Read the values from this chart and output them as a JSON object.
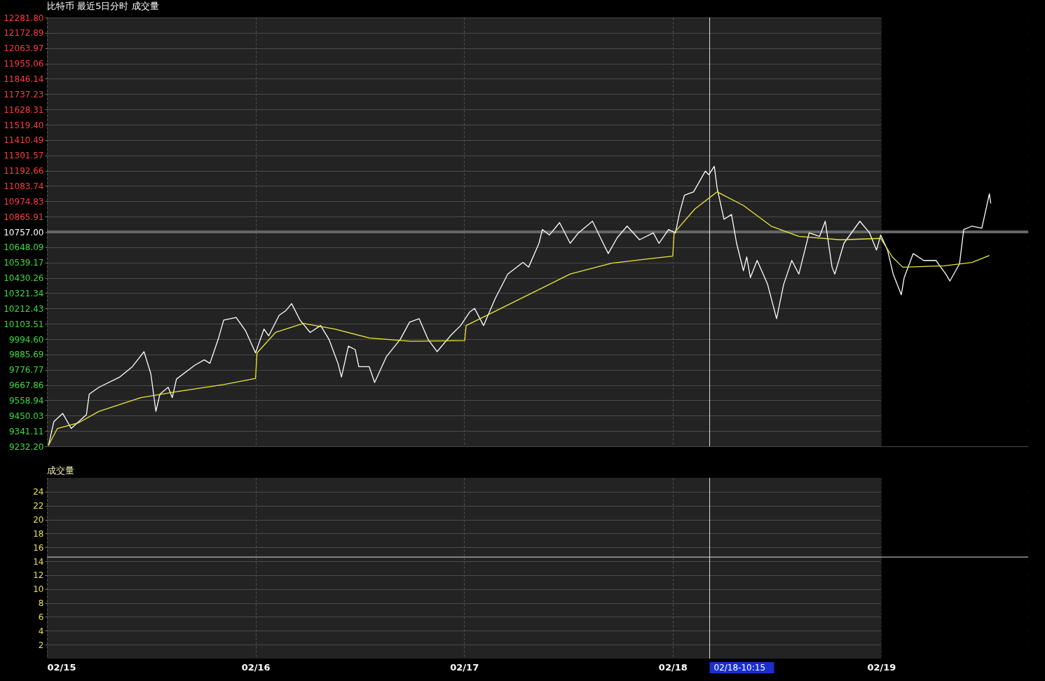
{
  "chart_data": [
    {
      "type": "line",
      "title": "比特币 最近5日分时 成交量",
      "xlim": [
        "--02-15T06:00",
        "--02-19T22:54"
      ],
      "xticks": [
        {
          "value": "--02-15T06:00",
          "label": "02/15"
        },
        {
          "value": "--02-16T06:00",
          "label": "02/16"
        },
        {
          "value": "--02-17T06:00",
          "label": "02/17"
        },
        {
          "value": "--02-18T06:00",
          "label": "02/18"
        },
        {
          "value": "--02-19T06:00",
          "label": "02/19"
        }
      ],
      "ylim": [
        9232.2,
        12281.8
      ],
      "yticks": [
        {
          "value": 9232.2,
          "label": "9232.20"
        },
        9341.11,
        9450.03,
        9558.94,
        9667.86,
        9776.77,
        9885.69,
        {
          "value": 9994.6,
          "label": "9994.60"
        },
        10103.51,
        10212.43,
        10321.34,
        10430.26,
        10539.17,
        10648.09,
        {
          "value": 10757,
          "label": "10757.00"
        },
        10865.91,
        10974.83,
        11083.74,
        11192.66,
        11301.57,
        11410.49,
        {
          "value": 11519.4,
          "label": "11519.40"
        },
        11628.31,
        11737.23,
        11846.14,
        11955.06,
        12063.97,
        12172.89,
        {
          "value": 12281.8,
          "label": "12281.80"
        }
      ],
      "tick_labels": "y",
      "grid": true,
      "series": [
        {
          "color": "#ffffff",
          "x": [
            "--02-15T06:10",
            "--02-15T06:48",
            "--02-15T07:49",
            "--02-15T08:47",
            "--02-15T10:32",
            "--02-15T10:52",
            "--02-15T11:59",
            "--02-15T14:23",
            "--02-15T15:49",
            "--02-15T17:10",
            "--02-15T17:57",
            "--02-15T18:32",
            "--02-15T19:00",
            "--02-15T19:57",
            "--02-15T20:25",
            "--02-15T20:54",
            "--02-15T22:59",
            "--02-16T00:06",
            "--02-16T00:45",
            "--02-16T01:42",
            "--02-16T02:20",
            "--02-16T03:46",
            "--02-16T04:52",
            "--02-16T06:00",
            "--02-16T06:58",
            "--02-16T07:31",
            "--02-16T08:43",
            "--02-16T09:30",
            "--02-16T10:09",
            "--02-16T11:07",
            "--02-16T12:17",
            "--02-16T13:29",
            "--02-16T14:27",
            "--02-16T15:29",
            "--02-16T15:53",
            "--02-16T16:41",
            "--02-16T17:28",
            "--02-16T17:53",
            "--02-16T19:05",
            "--02-16T19:42",
            "--02-16T21:04",
            "--02-16T22:39",
            "--02-16T23:43",
            "--02-17T00:49",
            "--02-17T01:51",
            "--02-17T02:53",
            "--02-17T04:25",
            "--02-17T05:36",
            "--02-17T06:39",
            "--02-17T07:12",
            "--02-17T08:14",
            "--02-17T09:36",
            "--02-17T11:01",
            "--02-17T12:46",
            "--02-17T13:25",
            "--02-17T14:37",
            "--02-17T15:00",
            "--02-17T15:49",
            "--02-17T16:59",
            "--02-17T18:12",
            "--02-17T19:09",
            "--02-17T20:46",
            "--02-17T21:48",
            "--02-17T22:35",
            "--02-17T23:37",
            "--02-18T00:45",
            "--02-18T02:11",
            "--02-18T03:46",
            "--02-18T04:25",
            "--02-18T05:31",
            "--02-18T06:19",
            "--02-18T06:48",
            "--02-18T07:21",
            "--02-18T08:24",
            "--02-18T09:45",
            "--02-18T10:09",
            "--02-18T10:47",
            "--02-18T11:07",
            "--02-18T11:54",
            "--02-18T12:46",
            "--02-18T13:21",
            "--02-18T14:08",
            "--02-18T14:31",
            "--02-18T14:56",
            "--02-18T15:43",
            "--02-18T16:55",
            "--02-18T17:57",
            "--02-18T18:46",
            "--02-18T19:42",
            "--02-18T20:31",
            "--02-18T21:42",
            "--02-18T22:54",
            "--02-18T23:33",
            "--02-19T00:20",
            "--02-19T00:39",
            "--02-19T01:42",
            "--02-19T03:32",
            "--02-19T04:39",
            "--02-19T05:27",
            "--02-19T05:56",
            "--02-19T06:43",
            "--02-19T07:22",
            "--02-19T08:18",
            "--02-19T08:38",
            "--02-19T09:40",
            "--02-19T10:52",
            "--02-19T12:17",
            "--02-19T13:25",
            "--02-19T13:54",
            "--02-19T15:00",
            "--02-19T15:29",
            "--02-19T16:26",
            "--02-19T17:34",
            "--02-19T17:53",
            "--02-19T18:26",
            "--02-19T18:36"
          ],
          "values": [
            9237,
            9408,
            9466,
            9359,
            9456,
            9603,
            9652,
            9725,
            9798,
            9905,
            9749,
            9481,
            9603,
            9652,
            9578,
            9710,
            9808,
            9847,
            9822,
            9993,
            10130,
            10149,
            10052,
            9896,
            10066,
            10018,
            10164,
            10198,
            10247,
            10130,
            10042,
            10091,
            9993,
            9822,
            9725,
            9944,
            9920,
            9798,
            9798,
            9686,
            9871,
            9993,
            10115,
            10140,
            9993,
            9905,
            10018,
            10091,
            10188,
            10213,
            10091,
            10286,
            10457,
            10540,
            10506,
            10676,
            10774,
            10735,
            10823,
            10676,
            10750,
            10833,
            10701,
            10603,
            10716,
            10798,
            10701,
            10750,
            10676,
            10774,
            10750,
            10896,
            11018,
            11042,
            11189,
            11164,
            11223,
            11067,
            10847,
            10881,
            10676,
            10481,
            10579,
            10432,
            10554,
            10384,
            10140,
            10384,
            10554,
            10457,
            10750,
            10725,
            10833,
            10506,
            10457,
            10676,
            10833,
            10750,
            10628,
            10735,
            10628,
            10457,
            10310,
            10432,
            10603,
            10554,
            10554,
            10457,
            10408,
            10530,
            10774,
            10798,
            10784,
            10872,
            11028,
            10960
          ]
        },
        {
          "color": "#e8e83a",
          "x": [
            "--02-15T06:10",
            "--02-15T07:12",
            "--02-15T09:36",
            "--02-15T11:59",
            "--02-15T16:47",
            "--02-15T21:33",
            "--02-16T02:20",
            "--02-16T06:00",
            "--02-16T06:10",
            "--02-16T08:18",
            "--02-16T11:30",
            "--02-16T15:06",
            "--02-16T19:05",
            "--02-16T23:51",
            "--02-17T06:04",
            "--02-17T06:14",
            "--02-17T09:26",
            "--02-17T13:25",
            "--02-17T18:12",
            "--02-17T22:59",
            "--02-18T03:46",
            "--02-18T06:00",
            "--02-18T06:10",
            "--02-18T08:33",
            "--02-18T11:07",
            "--02-18T14:08",
            "--02-18T17:20",
            "--02-18T20:31",
            "--02-19T01:18",
            "--02-19T05:56",
            "--02-19T07:16",
            "--02-19T08:28",
            "--02-19T13:15",
            "--02-19T16:26",
            "--02-19T18:26"
          ],
          "values": [
            9237,
            9359,
            9398,
            9481,
            9578,
            9627,
            9671,
            9715,
            9896,
            10042,
            10106,
            10066,
            10003,
            9979,
            9984,
            10091,
            10188,
            10310,
            10457,
            10535,
            10569,
            10584,
            10750,
            10920,
            11042,
            10945,
            10798,
            10725,
            10701,
            10711,
            10579,
            10506,
            10516,
            10540,
            10589
          ]
        }
      ],
      "ref_lines": [
        {
          "axis": "y",
          "value": 10757,
          "color": "#666666"
        },
        {
          "axis": "x",
          "value": "--02-18T10:15",
          "color": "#dddddd"
        }
      ],
      "bands": [
        {
          "axis": "x",
          "from": "--02-19T06:00",
          "to": "--02-19T22:54",
          "color": "#000000"
        }
      ]
    },
    {
      "type": "bar",
      "title": "成交量",
      "xlim": [
        "--02-15T06:00",
        "--02-19T22:54"
      ],
      "xticks": [
        {
          "value": "--02-15T06:00",
          "label": "02/15"
        },
        {
          "value": "--02-16T06:00",
          "label": "02/16"
        },
        {
          "value": "--02-17T06:00",
          "label": "02/17"
        },
        {
          "value": "--02-18T06:00",
          "label": "02/18"
        },
        {
          "value": "--02-19T06:00",
          "label": "02/19"
        }
      ],
      "ylim": [
        0,
        26
      ],
      "yticks": [
        2,
        4,
        6,
        8,
        10,
        12,
        14,
        16,
        18,
        20,
        22,
        24
      ],
      "grid": true,
      "ref_lines": [
        {
          "axis": "y",
          "value": 14.6,
          "color": "#dddddd"
        },
        {
          "axis": "x",
          "value": "--02-18T10:15",
          "label": "02/18-10:15",
          "color": "#dddddd"
        }
      ],
      "bands": [
        {
          "axis": "x",
          "from": "--02-19T06:00",
          "to": "--02-19T22:54",
          "color": "#000000"
        }
      ]
    }
  ]
}
